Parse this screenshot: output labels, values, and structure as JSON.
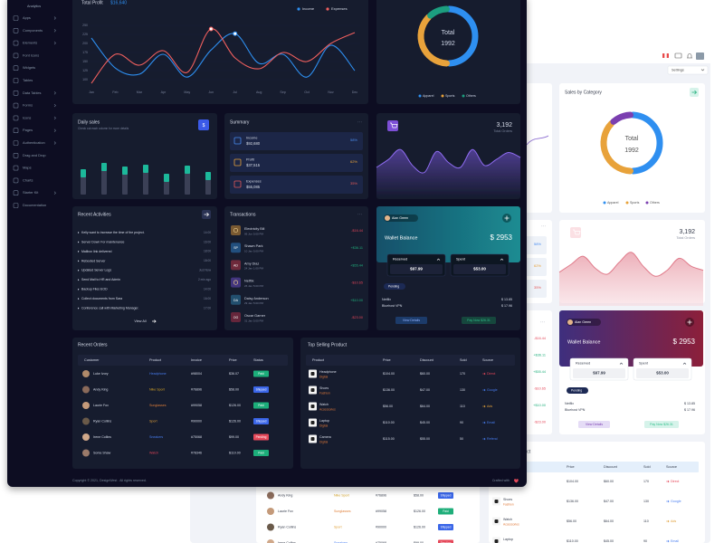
{
  "sidebar": {
    "section": "Analytics",
    "items": [
      "Apps",
      "Components",
      "Elements",
      "Font Icons",
      "Widgets",
      "Tables",
      "Data Tables",
      "Forms",
      "Icons",
      "Pages",
      "Authentication",
      "Drag and Drop",
      "Maps",
      "Charts",
      "Starter Kit",
      "Documentation"
    ]
  },
  "profit": {
    "title": "Total Profit",
    "amount": "$16,640",
    "legend": [
      "Income",
      "Expenses"
    ],
    "colors": [
      "#2f8ff0",
      "#f0605e"
    ],
    "ylim": [
      85,
      255
    ],
    "yticks": [
      250,
      225,
      200,
      175,
      150,
      125,
      100
    ],
    "months": [
      "Jan",
      "Feb",
      "Mar",
      "Apr",
      "May",
      "Jun",
      "Jul",
      "Aug",
      "Sep",
      "Oct",
      "Nov",
      "Dec"
    ],
    "income": [
      215,
      132,
      115,
      170,
      107,
      182,
      227,
      145,
      170,
      107,
      195,
      125
    ],
    "expenses": [
      90,
      170,
      140,
      180,
      120,
      240,
      160,
      130,
      175,
      150,
      200,
      230
    ]
  },
  "category": {
    "title": "Sales by Category",
    "center_label": "Total",
    "total": "1992",
    "names": [
      "Apparel",
      "Sports",
      "Others"
    ],
    "values": [
      50,
      38,
      12
    ],
    "colors": [
      "#2f8ff0",
      "#e8a23a",
      "#1f9e7f"
    ],
    "back_colors": [
      "#2f8ff0",
      "#e8a23a",
      "#7b3fb0"
    ]
  },
  "daily": {
    "title": "Daily sales",
    "subtitle": "Check out each column for more details",
    "icon": "$",
    "values": [
      28,
      35,
      31,
      33,
      23,
      32,
      25
    ]
  },
  "summary": {
    "title": "Summary",
    "menu": "···",
    "rows": [
      {
        "label": "Income",
        "amount": "$92,680",
        "pct": "58%",
        "color": "#4a8cf0"
      },
      {
        "label": "Profit",
        "amount": "$37,515",
        "pct": "62%",
        "color": "#e8a23a"
      },
      {
        "label": "Expenses",
        "amount": "$55,085",
        "pct": "35%",
        "color": "#e45a5a"
      }
    ]
  },
  "orders": {
    "total": "3,192",
    "label": "Total Orders",
    "trend": [
      20,
      28,
      38,
      22,
      15,
      36,
      25,
      20,
      38,
      22,
      28,
      35,
      30
    ],
    "trend_back": [
      22,
      30,
      38,
      26,
      20,
      32,
      42,
      28,
      18,
      24,
      36,
      28,
      24
    ]
  },
  "activities": {
    "title": "Recent Activities",
    "view_all": "View All",
    "items": [
      {
        "text": "Kelly want to increase the time of the project.",
        "time": "14:00"
      },
      {
        "text": "Server Down For maintenance",
        "time": "16:00"
      },
      {
        "text": "Mailbox link delivered",
        "time": "18:00"
      },
      {
        "text": "Rebooted Server",
        "time": "18:00"
      },
      {
        "text": "Updated Server Logs",
        "time": "Just Now"
      },
      {
        "text": "Send Mail to HR and Admin",
        "time": "2 min ago"
      },
      {
        "text": "Backup Files EOD",
        "time": "14:00"
      },
      {
        "text": "Collect documents from Sara",
        "time": "16:00"
      },
      {
        "text": "Conference call with Marketing Manager.",
        "time": "17:00"
      }
    ]
  },
  "transactions": {
    "title": "Transactions",
    "menu": "···",
    "rows": [
      {
        "name": "Electricity Bill",
        "date": "06 Jun 5:00 PM",
        "amount": "-$16.44",
        "color": "#7a5a32"
      },
      {
        "initials": "SP",
        "name": "Shawn Park",
        "date": "10 Jan 5:00 PM",
        "amount": "+$36.11",
        "color": "#24507e"
      },
      {
        "initials": "AD",
        "name": "Amy Diaz",
        "date": "24 Jan 1:00 PM",
        "amount": "+$55.44",
        "color": "#6e2a3a"
      },
      {
        "name": "Netflix",
        "date": "26 Jan 5:00 PM",
        "amount": "-$10.65",
        "color": "#43357e"
      },
      {
        "initials": "DA",
        "name": "Daisy Anderson",
        "date": "29 Jan 5:00 PM",
        "amount": "+$10.00",
        "color": "#24506e"
      },
      {
        "initials": "OG",
        "name": "Oscar Garner",
        "date": "31 Jan 5:00 PM",
        "amount": "-$23.00",
        "color": "#66283a"
      }
    ]
  },
  "wallet": {
    "user": "Alan Green",
    "title": "Wallet Balance",
    "balance": "$ 2953",
    "reserved": {
      "label": "Reserved",
      "amount": "$97.99"
    },
    "spent": {
      "label": "Spent",
      "amount": "$53.00"
    },
    "status": "Pending",
    "bills": [
      {
        "name": "Netflix",
        "amount": "$ 13.85"
      },
      {
        "name": "Bluehost VPN",
        "amount": "$ 17.96"
      }
    ],
    "details": "View Details",
    "pay": "Pay Now $26.31"
  },
  "recent_orders": {
    "title": "Recent Orders",
    "columns": [
      "Customer",
      "Product",
      "Invoice",
      "Price",
      "Status"
    ],
    "status_colors": {
      "Paid": "#1fae7a",
      "Shipped": "#3a66e8",
      "Pending": "#e5485a"
    },
    "rows": [
      {
        "customer": "Luke Ivory",
        "product": "Headphone",
        "product_color": "#4a7ff0",
        "invoice": "#98004",
        "price": "$36.07",
        "status": "Paid"
      },
      {
        "customer": "Andy King",
        "product": "Nike Sport",
        "product_color": "#d6a52a",
        "invoice": "#76896",
        "price": "$58.00",
        "status": "Shipped"
      },
      {
        "customer": "Laurie Fox",
        "product": "Sunglasses",
        "product_color": "#e0803a",
        "invoice": "#99058",
        "price": "$126.00",
        "status": "Paid"
      },
      {
        "customer": "Ryan Collins",
        "product": "Sport",
        "product_color": "#e0a03a",
        "invoice": "#90000",
        "price": "$126.00",
        "status": "Shipped"
      },
      {
        "customer": "Irene Collins",
        "product": "Sneakers",
        "product_color": "#4a7ff0",
        "invoice": "#75068",
        "price": "$99.00",
        "status": "Pending"
      },
      {
        "customer": "Sonia Shaw",
        "product": "Watch",
        "product_color": "#e5485a",
        "invoice": "#78346",
        "price": "$110.00",
        "status": "Paid"
      }
    ]
  },
  "top_products": {
    "title": "Top Selling Product",
    "columns": [
      "Product",
      "Price",
      "Discount",
      "Sold",
      "Source"
    ],
    "rows": [
      {
        "name": "Headphone",
        "category": "Digital",
        "price": "$104.00",
        "discount": "$60.00",
        "sold": "170",
        "source": "Direct",
        "color": "#e5485a"
      },
      {
        "name": "Shoes",
        "category": "Fashion",
        "price": "$136.00",
        "discount": "$47.00",
        "sold": "130",
        "source": "Google",
        "color": "#4a7ff0"
      },
      {
        "name": "Watch",
        "category": "Accessories",
        "price": "$56.00",
        "discount": "$64.00",
        "sold": "110",
        "source": "Ads",
        "color": "#e0a03a"
      },
      {
        "name": "Laptop",
        "category": "Digital",
        "price": "$110.00",
        "discount": "$45.00",
        "sold": "90",
        "source": "Email",
        "color": "#4a7ff0"
      },
      {
        "name": "Camera",
        "category": "Digital",
        "price": "$115.00",
        "discount": "$55.00",
        "sold": "50",
        "source": "Referal",
        "color": "#4a7ff0"
      }
    ]
  },
  "footer": {
    "copyright": "Copyright © 2021, DesignWest . All rights reserved.",
    "credit": "Crafted with"
  },
  "settings": "Settings"
}
